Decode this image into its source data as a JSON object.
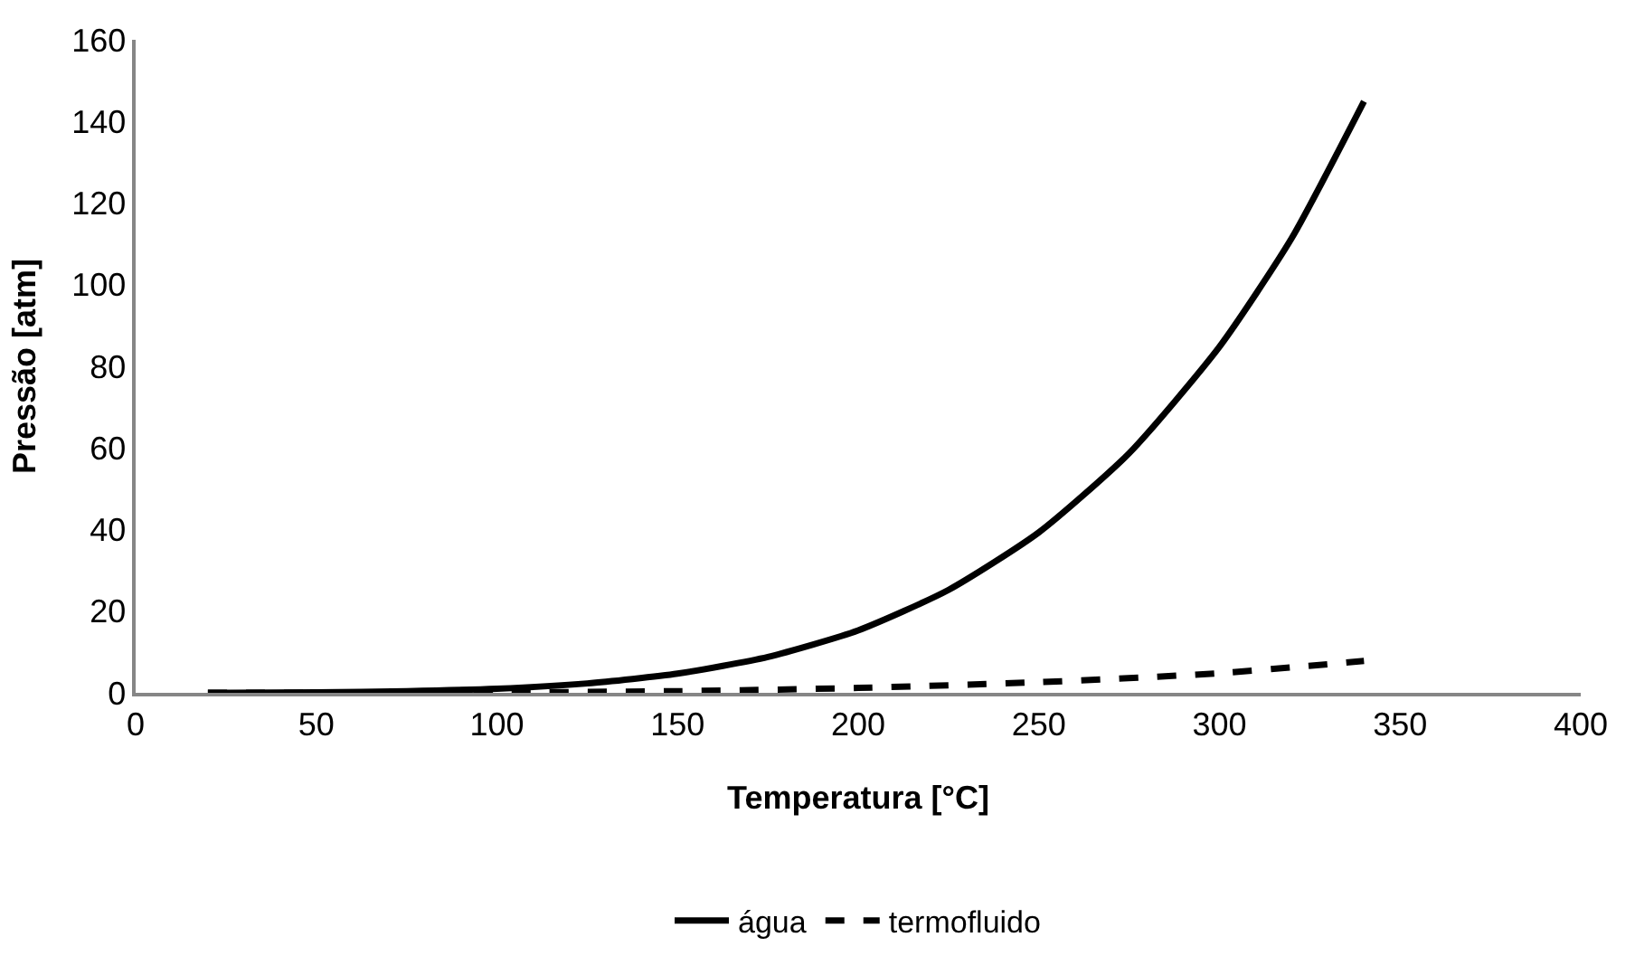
{
  "chart_data": {
    "type": "line",
    "xlabel": "Temperatura [°C]",
    "ylabel": "Pressão [atm]",
    "xlim": [
      0,
      400
    ],
    "xticks": [
      0,
      50,
      100,
      150,
      200,
      250,
      300,
      350,
      400
    ],
    "ylim": [
      0,
      160
    ],
    "yticks": [
      0,
      20,
      40,
      60,
      80,
      100,
      120,
      140,
      160
    ],
    "legend": "bottom",
    "marker": "none",
    "series": [
      {
        "name": "água",
        "color": "#000000",
        "line_style": "solid",
        "x": [
          20,
          50,
          75,
          100,
          125,
          150,
          175,
          200,
          225,
          250,
          275,
          300,
          320,
          340
        ],
        "values": [
          0,
          0.1,
          0.4,
          1,
          2.3,
          4.7,
          8.8,
          15.3,
          25.2,
          39.3,
          58.7,
          84.8,
          111.4,
          144.9
        ]
      },
      {
        "name": "termofluido",
        "color": "#000000",
        "line_style": "dashed",
        "x": [
          20,
          100,
          150,
          200,
          250,
          300,
          340
        ],
        "values": [
          0,
          0.1,
          0.4,
          1.2,
          2.6,
          4.8,
          7.8
        ]
      }
    ]
  }
}
